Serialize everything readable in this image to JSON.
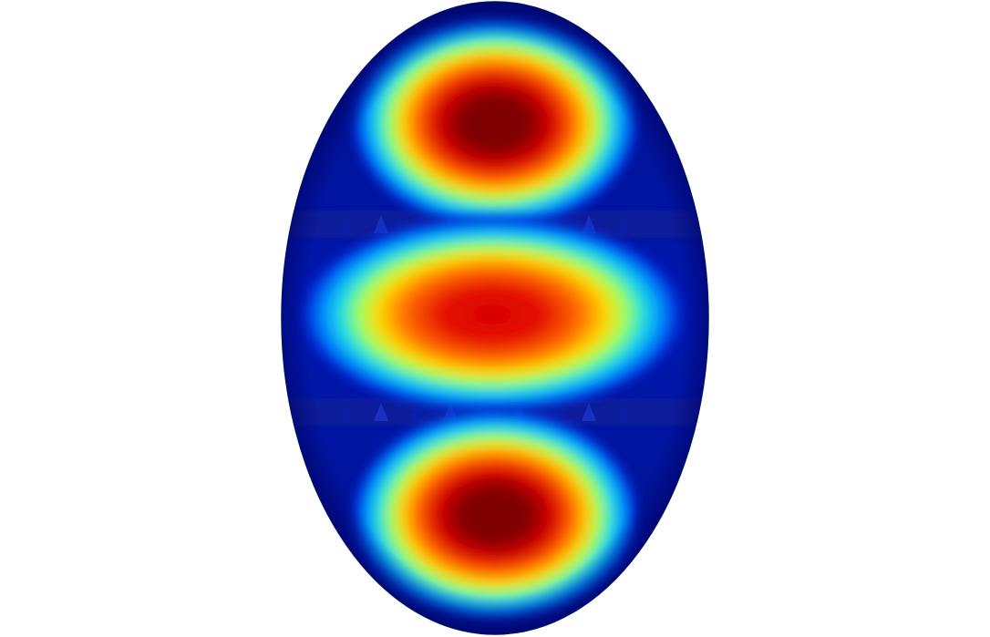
{
  "scene": {
    "background_color": "#ffffff",
    "shape": "ellipse",
    "colormap": "jet",
    "colormap_stops": [
      "#00007f",
      "#0000ff",
      "#0080ff",
      "#00ffff",
      "#80ff80",
      "#ffff00",
      "#ff8000",
      "#ff0000",
      "#7f0000"
    ],
    "lobes": [
      {
        "region": "top",
        "peak_level": 1.0
      },
      {
        "region": "middle",
        "peak_level": 0.85
      },
      {
        "region": "bottom",
        "peak_level": 1.0
      }
    ],
    "nodal_bands": [
      {
        "region": "upper"
      },
      {
        "region": "lower"
      }
    ]
  }
}
